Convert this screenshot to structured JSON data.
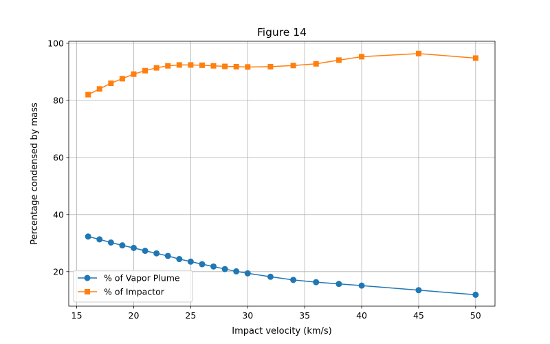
{
  "chart_data": {
    "type": "line",
    "title": "Figure 14",
    "xlabel": "Impact velocity (km/s)",
    "ylabel": "Percentage condensed by mass",
    "xlim": [
      14.3,
      51.7
    ],
    "ylim": [
      7.9,
      100.7
    ],
    "xticks": [
      15,
      20,
      25,
      30,
      35,
      40,
      45,
      50
    ],
    "yticks": [
      20,
      40,
      60,
      80,
      100
    ],
    "grid": true,
    "legend_position": "lower-left",
    "series": [
      {
        "name": "% of Vapor Plume",
        "color": "#1f77b4",
        "marker": "circle",
        "x": [
          16,
          17,
          18,
          19,
          20,
          21,
          22,
          23,
          24,
          25,
          26,
          27,
          28,
          29,
          30,
          32,
          34,
          36,
          38,
          40,
          45,
          50
        ],
        "y": [
          32.3,
          31.3,
          30.2,
          29.2,
          28.3,
          27.3,
          26.4,
          25.5,
          24.4,
          23.5,
          22.6,
          21.8,
          20.9,
          20.1,
          19.4,
          18.2,
          17.1,
          16.3,
          15.7,
          15.1,
          13.5,
          11.9
        ]
      },
      {
        "name": "% of Impactor",
        "color": "#ff7f0e",
        "marker": "square",
        "x": [
          16,
          17,
          18,
          19,
          20,
          21,
          22,
          23,
          24,
          25,
          26,
          27,
          28,
          29,
          30,
          32,
          34,
          36,
          38,
          40,
          45,
          50
        ],
        "y": [
          82.0,
          84.0,
          86.0,
          87.6,
          89.2,
          90.4,
          91.4,
          92.1,
          92.4,
          92.4,
          92.3,
          92.1,
          91.9,
          91.8,
          91.7,
          91.8,
          92.2,
          92.8,
          94.1,
          95.3,
          96.4,
          94.8
        ]
      }
    ]
  }
}
